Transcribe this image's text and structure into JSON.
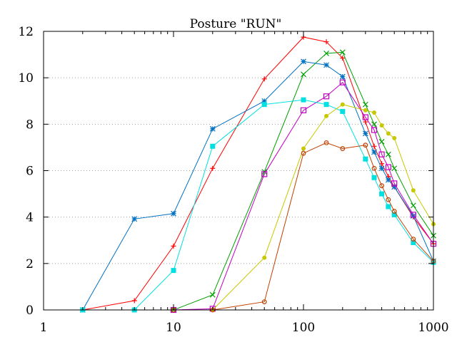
{
  "chart_data": {
    "type": "line",
    "title": "Posture \"RUN\"",
    "xlabel": "",
    "ylabel": "",
    "xscale": "log",
    "xlim": [
      1,
      1000
    ],
    "ylim": [
      0,
      12
    ],
    "x_ticks": [
      1,
      10,
      100,
      1000
    ],
    "x_tick_labels": [
      "1",
      "10",
      "100",
      "1000"
    ],
    "y_ticks": [
      0,
      2,
      4,
      6,
      8,
      10,
      12
    ],
    "y_tick_labels": [
      "0",
      "2",
      "4",
      "6",
      "8",
      "10",
      "12"
    ],
    "grid": "y-dotted",
    "legend": "none",
    "series": [
      {
        "color": "#ff0000",
        "marker": "plus",
        "x": [
          2,
          5,
          10,
          20,
          50,
          100,
          150,
          200,
          300,
          350,
          400,
          450,
          500,
          700,
          1000
        ],
        "y": [
          0,
          0.4,
          2.75,
          6.1,
          9.95,
          11.75,
          11.55,
          10.85,
          8.1,
          7.05,
          6.3,
          5.75,
          5.3,
          4.0,
          2.85
        ]
      },
      {
        "color": "#00a000",
        "marker": "cross",
        "x": [
          10,
          20,
          50,
          100,
          150,
          200,
          300,
          350,
          400,
          450,
          500,
          700,
          1000
        ],
        "y": [
          0,
          0.65,
          5.95,
          10.15,
          11.05,
          11.1,
          8.85,
          8.0,
          7.25,
          6.7,
          6.1,
          4.5,
          3.2
        ]
      },
      {
        "color": "#0070c0",
        "marker": "asterisk",
        "x": [
          2,
          5,
          10,
          20,
          50,
          100,
          150,
          200,
          300,
          350,
          400,
          450,
          500,
          700,
          1000
        ],
        "y": [
          0,
          3.92,
          4.15,
          7.8,
          9.0,
          10.7,
          10.55,
          10.05,
          7.6,
          6.8,
          6.1,
          5.6,
          5.3,
          4.05,
          2.1
        ]
      },
      {
        "color": "#c000c0",
        "marker": "square-open",
        "x": [
          10,
          20,
          50,
          100,
          150,
          200,
          300,
          350,
          400,
          450,
          500,
          700,
          1000
        ],
        "y": [
          0,
          0.05,
          5.85,
          8.6,
          9.2,
          9.8,
          8.3,
          7.75,
          6.7,
          6.15,
          5.45,
          4.1,
          2.85
        ]
      },
      {
        "color": "#00e0e0",
        "marker": "square-filled",
        "x": [
          2,
          5,
          10,
          20,
          50,
          100,
          150,
          200,
          300,
          350,
          400,
          450,
          500,
          700,
          1000
        ],
        "y": [
          0,
          0,
          1.7,
          7.05,
          8.85,
          9.05,
          8.85,
          8.55,
          6.5,
          5.7,
          5.0,
          4.45,
          4.1,
          2.9,
          2.05
        ]
      },
      {
        "color": "#c8c800",
        "marker": "circle-filled",
        "x": [
          20,
          50,
          100,
          150,
          200,
          300,
          350,
          400,
          450,
          500,
          700,
          1000
        ],
        "y": [
          0,
          2.25,
          6.95,
          8.35,
          8.85,
          8.6,
          8.5,
          7.95,
          7.6,
          7.4,
          5.15,
          3.7
        ]
      },
      {
        "color": "#c04000",
        "marker": "circle-open",
        "x": [
          10,
          20,
          50,
          100,
          150,
          200,
          300,
          350,
          400,
          450,
          500,
          700,
          1000
        ],
        "y": [
          0,
          0,
          0.35,
          6.75,
          7.2,
          6.95,
          7.1,
          6.1,
          5.35,
          4.75,
          4.25,
          3.05,
          2.1
        ]
      }
    ]
  }
}
